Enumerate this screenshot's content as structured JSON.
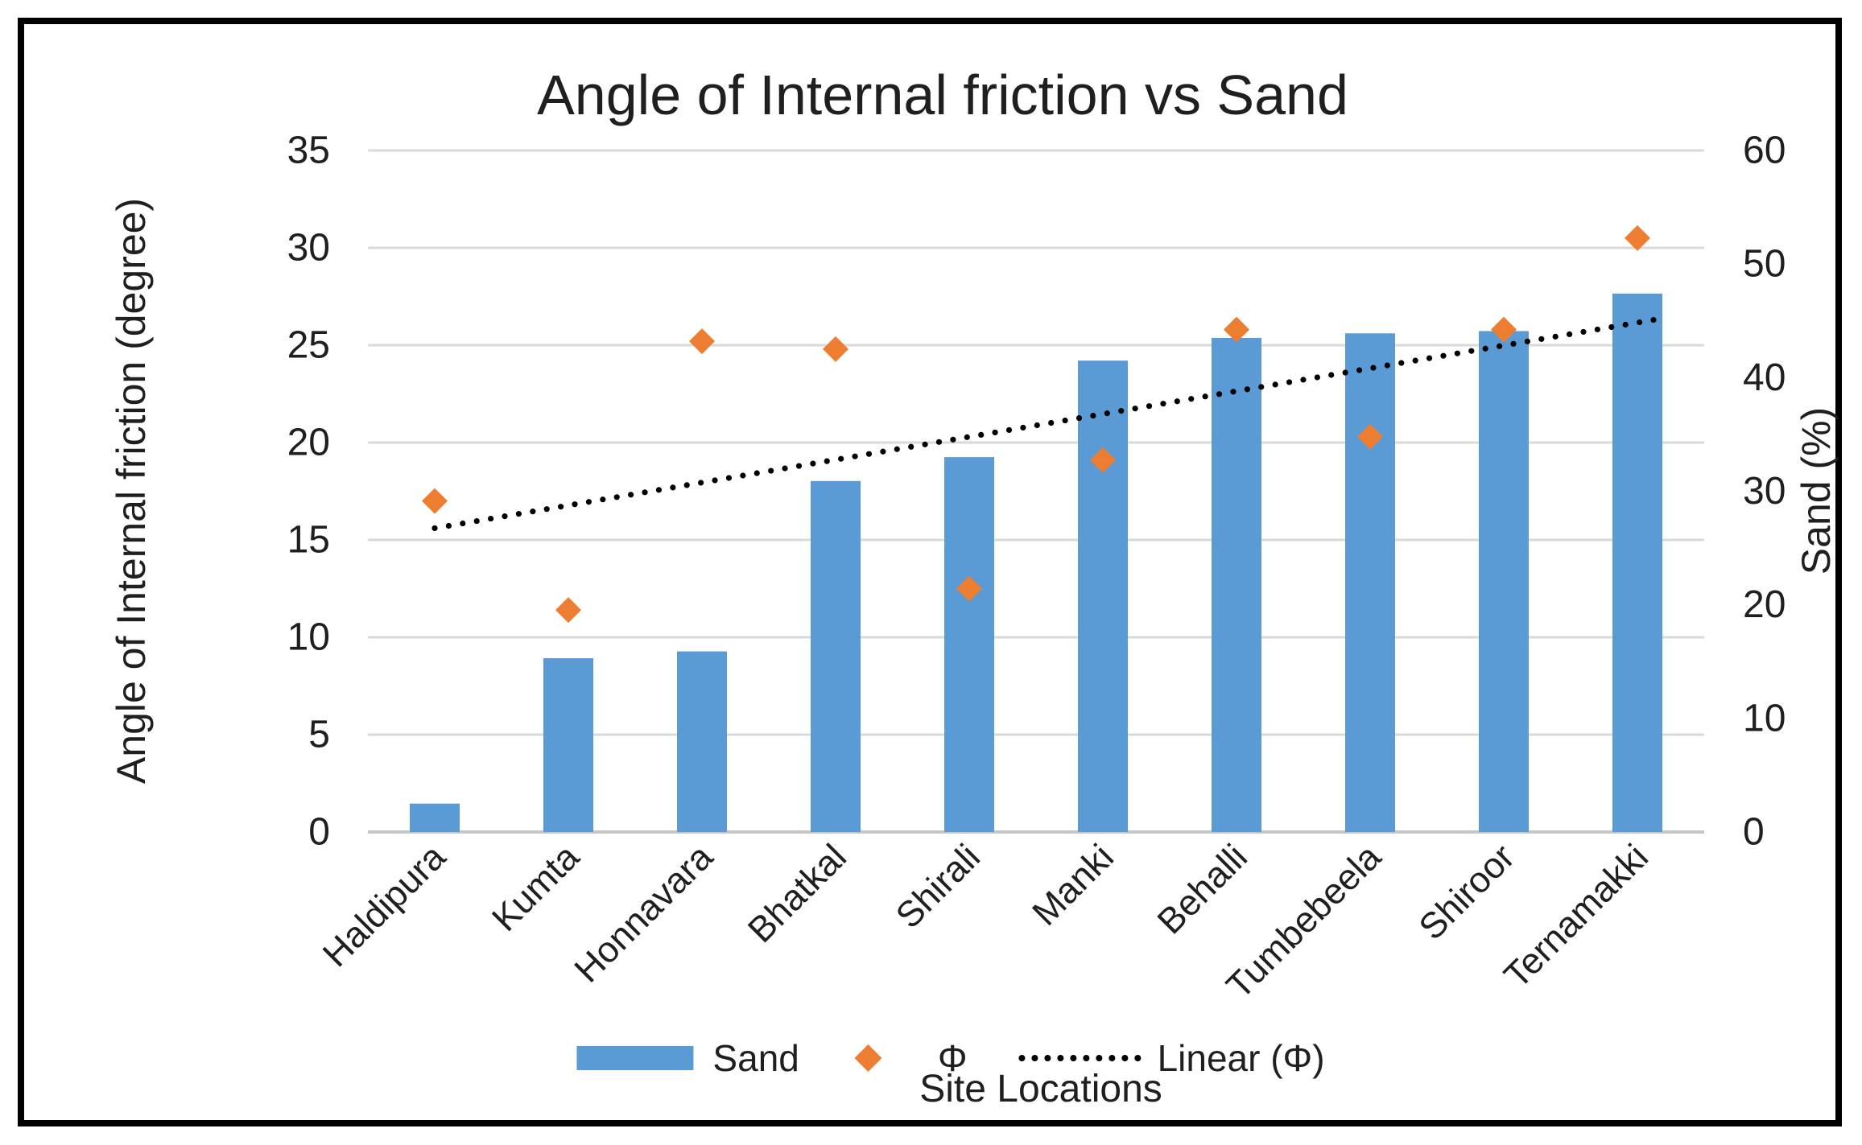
{
  "colors": {
    "bar": "#5B9BD5",
    "marker": "#ED7D31",
    "trendline": "#000000",
    "gridline": "#D9D9D9",
    "axis_line": "#C6C6C6",
    "text": "#1f1f1f"
  },
  "chart_data": {
    "type": "bar",
    "title": "Angle of Internal friction vs Sand",
    "categories": [
      "Haldipura",
      "Kumta",
      "Honnavara",
      "Bhatkal",
      "Shirali",
      "Manki",
      "Behalli",
      "Tumbebeela",
      "Shiroor",
      "Ternamakki"
    ],
    "series": [
      {
        "name": "Sand",
        "type": "bar",
        "axis": "right",
        "values": [
          2.5,
          15.3,
          15.9,
          30.9,
          33.0,
          41.5,
          43.5,
          43.9,
          44.1,
          47.4
        ]
      },
      {
        "name": "Φ",
        "type": "scatter",
        "marker": "diamond",
        "axis": "left",
        "values": [
          17.0,
          11.4,
          25.2,
          24.8,
          12.5,
          19.1,
          25.8,
          20.3,
          25.8,
          30.5
        ]
      },
      {
        "name": "Linear (Φ)",
        "type": "trendline",
        "style": "dotted",
        "axis": "left",
        "start_value": 15.6,
        "end_value": 26.3
      }
    ],
    "left_axis": {
      "label": "Angle of Internal friction (degree)",
      "min": 0,
      "max": 35,
      "tick_step": 5,
      "ticks": [
        0,
        5,
        10,
        15,
        20,
        25,
        30,
        35
      ]
    },
    "right_axis": {
      "label": "Sand (%)",
      "min": 0,
      "max": 60,
      "tick_step": 10,
      "ticks": [
        0,
        10,
        20,
        30,
        40,
        50,
        60
      ]
    },
    "x_axis": {
      "label": "Site Locations"
    },
    "legend": {
      "position": "bottom",
      "entries": [
        "Sand",
        "Φ",
        "Linear (Φ)"
      ]
    },
    "grid": "horizontal"
  }
}
